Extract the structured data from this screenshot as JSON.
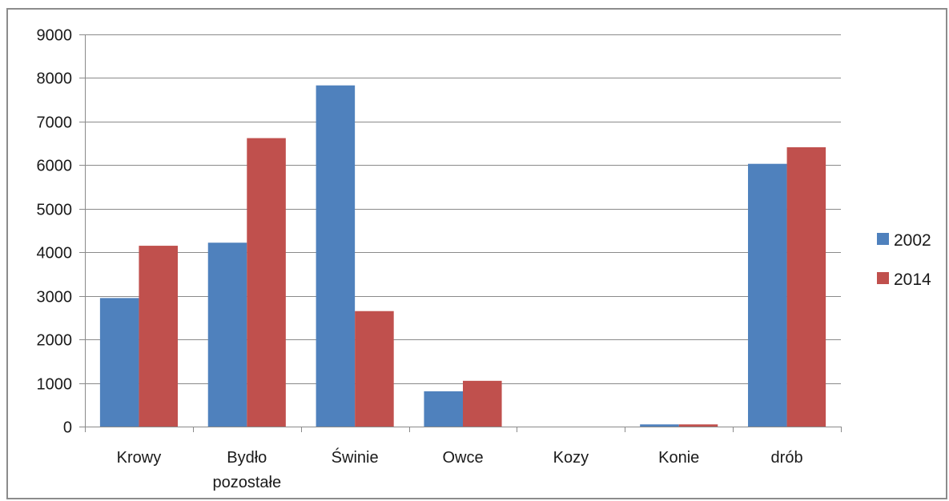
{
  "chart_data": {
    "type": "bar",
    "categories": [
      "Krowy",
      "Bydło pozostałe",
      "Świnie",
      "Owce",
      "Kozy",
      "Konie",
      "drób"
    ],
    "category_lines": [
      [
        "Krowy"
      ],
      [
        "Bydło",
        "pozostałe"
      ],
      [
        "Świnie"
      ],
      [
        "Owce"
      ],
      [
        "Kozy"
      ],
      [
        "Konie"
      ],
      [
        "drób"
      ]
    ],
    "series": [
      {
        "name": "2002",
        "values": [
          2950,
          4220,
          7830,
          810,
          0,
          50,
          6030
        ],
        "color": "#4f81bd"
      },
      {
        "name": "2014",
        "values": [
          4150,
          6620,
          2650,
          1050,
          0,
          50,
          6410
        ],
        "color": "#c0504d"
      }
    ],
    "yticks": [
      0,
      1000,
      2000,
      3000,
      4000,
      5000,
      6000,
      7000,
      8000,
      9000
    ],
    "ylim": [
      0,
      9000
    ],
    "grid": true,
    "legend_position": "right",
    "title": "",
    "xlabel": "",
    "ylabel": ""
  }
}
